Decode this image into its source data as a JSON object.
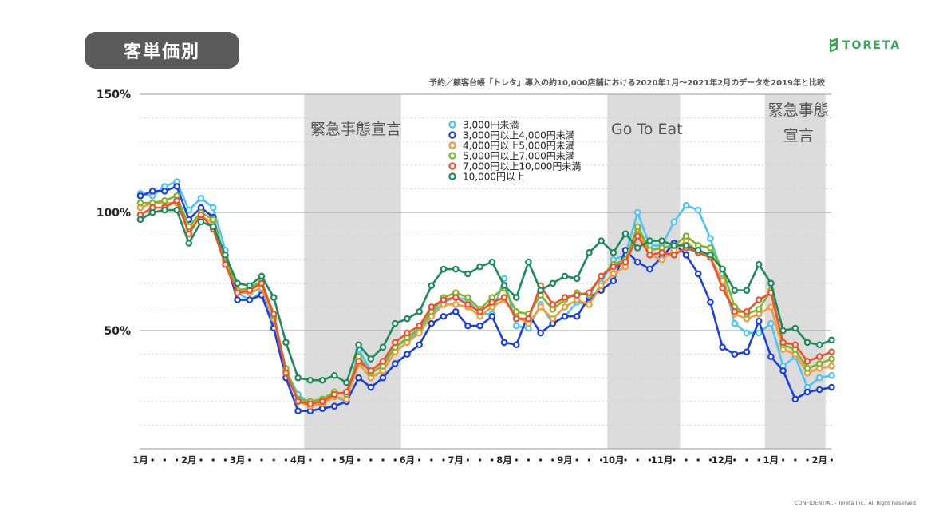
{
  "header": {
    "title": "客単価別",
    "brand_name": "TORETA"
  },
  "subtitle": "予約／顧客台帳「トレタ」導入の約10,000店舗における2020年1月〜2021年2月のデータを2019年と比較",
  "footer": "CONFIDENTIAL - Toreta Inc., All Right Reserved.",
  "colors": {
    "brand": "#3aa55a",
    "band": "#dcdcdc",
    "series": [
      "#4fc3f7",
      "#1a3ee8",
      "#f79a34",
      "#7ab82a",
      "#f0502a",
      "#1d8a5a"
    ]
  },
  "chart_data": {
    "type": "line",
    "title": "",
    "xlabel": "",
    "ylabel": "",
    "ylim": [
      0,
      150
    ],
    "y_ticks": [
      {
        "value": 150,
        "label": "150%"
      },
      {
        "value": 100,
        "label": "100%"
      },
      {
        "value": 50,
        "label": "50%"
      }
    ],
    "grid": true,
    "legend_position": "top-center",
    "x_ticks": [
      "1月",
      "2月",
      "3月",
      "4月",
      "5月",
      "6月",
      "7月",
      "8月",
      "9月",
      "10月",
      "11月",
      "12月",
      "1月",
      "2月"
    ],
    "x_tick_indices": [
      0,
      4,
      8,
      13,
      17,
      22,
      26,
      30,
      35,
      39,
      43,
      48,
      52,
      56
    ],
    "highlight_periods": [
      {
        "label": "緊急事態宣言",
        "start": 13.5,
        "end": 21.5
      },
      {
        "label": "Go To Eat",
        "start": 38.5,
        "end": 44.5
      },
      {
        "label": "緊急事態宣言",
        "start": 51.5,
        "end": 56.5
      }
    ],
    "series": [
      {
        "name": "3,000円未満",
        "values": [
          108,
          107,
          111,
          113,
          101,
          106,
          102,
          84,
          66,
          63,
          66,
          52,
          33,
          23,
          19,
          20,
          22,
          20,
          42,
          33,
          37,
          43,
          46,
          50,
          57,
          62,
          64,
          63,
          57,
          57,
          72,
          52,
          51,
          61,
          53,
          56,
          62,
          61,
          70,
          80,
          82,
          100,
          86,
          86,
          96,
          103,
          101,
          89,
          74,
          53,
          49,
          49,
          53,
          35,
          39,
          26,
          30,
          31
        ]
      },
      {
        "name": "3,000円以上4,000円未満",
        "values": [
          107,
          109,
          109,
          111,
          97,
          102,
          98,
          80,
          63,
          63,
          65,
          51,
          30,
          16,
          16,
          17,
          18,
          20,
          30,
          26,
          30,
          36,
          40,
          44,
          53,
          56,
          58,
          52,
          52,
          56,
          45,
          44,
          57,
          49,
          53,
          56,
          56,
          64,
          67,
          71,
          84,
          79,
          76,
          81,
          87,
          82,
          74,
          62,
          43,
          40,
          41,
          54,
          39,
          33,
          21,
          24,
          25,
          26
        ]
      },
      {
        "name": "4,000円以上5,000円未満",
        "values": [
          102,
          104,
          104,
          104,
          93,
          98,
          96,
          80,
          66,
          66,
          68,
          55,
          33,
          20,
          18,
          19,
          22,
          21,
          36,
          30,
          33,
          41,
          45,
          49,
          56,
          61,
          61,
          60,
          56,
          60,
          63,
          56,
          53,
          60,
          55,
          60,
          63,
          61,
          69,
          74,
          77,
          93,
          82,
          80,
          84,
          88,
          83,
          81,
          71,
          57,
          55,
          57,
          60,
          42,
          40,
          32,
          34,
          35
        ]
      },
      {
        "name": "5,000円以上7,000円未満",
        "values": [
          104,
          104,
          105,
          107,
          94,
          100,
          97,
          81,
          67,
          68,
          71,
          56,
          34,
          21,
          20,
          21,
          24,
          23,
          39,
          32,
          35,
          43,
          47,
          51,
          58,
          64,
          66,
          64,
          59,
          64,
          68,
          58,
          57,
          65,
          59,
          63,
          66,
          65,
          73,
          78,
          80,
          94,
          84,
          85,
          86,
          90,
          86,
          85,
          76,
          60,
          57,
          59,
          67,
          44,
          42,
          34,
          36,
          38
        ]
      },
      {
        "name": "7,000円以上10,000円未満",
        "values": [
          99,
          102,
          102,
          105,
          91,
          99,
          93,
          78,
          66,
          67,
          70,
          57,
          32,
          20,
          19,
          20,
          23,
          24,
          37,
          33,
          37,
          45,
          49,
          52,
          60,
          63,
          64,
          61,
          58,
          62,
          64,
          55,
          55,
          69,
          61,
          64,
          65,
          66,
          73,
          77,
          79,
          90,
          82,
          83,
          82,
          85,
          83,
          81,
          68,
          58,
          58,
          63,
          66,
          45,
          44,
          37,
          39,
          41
        ]
      },
      {
        "name": "10,000円以上",
        "values": [
          97,
          100,
          101,
          101,
          87,
          96,
          94,
          82,
          70,
          69,
          73,
          64,
          45,
          30,
          29,
          29,
          31,
          28,
          44,
          38,
          43,
          53,
          55,
          58,
          69,
          76,
          76,
          74,
          77,
          79,
          69,
          64,
          79,
          67,
          70,
          73,
          72,
          83,
          88,
          83,
          91,
          85,
          88,
          88,
          86,
          86,
          84,
          82,
          76,
          67,
          67,
          78,
          70,
          50,
          51,
          45,
          44,
          46
        ]
      }
    ]
  }
}
